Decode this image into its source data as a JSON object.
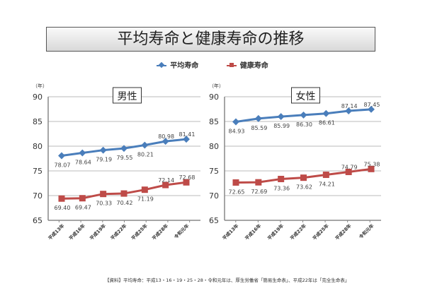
{
  "title": "平均寿命と健康寿命の推移",
  "legend": [
    {
      "name": "平均寿命",
      "color": "#4a7ebb"
    },
    {
      "name": "健康寿命",
      "color": "#be4b48"
    }
  ],
  "source": "【資料】平均寿命：平成13・16・19・25・28・令和元年は、厚生労働省「簡易生命表」、平成22年は「完全生命表」",
  "chart_data": [
    {
      "type": "line",
      "title": "男性",
      "ylabel": "（年）",
      "ylim": [
        65,
        90
      ],
      "yticks": [
        65,
        70,
        75,
        80,
        85,
        90
      ],
      "grid": true,
      "categories": [
        "平成13年",
        "平成16年",
        "平成19年",
        "平成22年",
        "平成25年",
        "平成28年",
        "令和元年"
      ],
      "series": [
        {
          "name": "平均寿命",
          "color": "#4a7ebb",
          "marker": "diamond",
          "values": [
            78.07,
            78.64,
            79.19,
            79.55,
            80.21,
            80.98,
            81.41
          ]
        },
        {
          "name": "健康寿命",
          "color": "#be4b48",
          "marker": "square",
          "values": [
            69.4,
            69.47,
            70.33,
            70.42,
            71.19,
            72.14,
            72.68
          ]
        }
      ]
    },
    {
      "type": "line",
      "title": "女性",
      "ylabel": "（年）",
      "ylim": [
        65,
        90
      ],
      "yticks": [
        65,
        70,
        75,
        80,
        85,
        90
      ],
      "grid": true,
      "categories": [
        "平成13年",
        "平成16年",
        "平成19年",
        "平成22年",
        "平成25年",
        "平成28年",
        "令和元年"
      ],
      "series": [
        {
          "name": "平均寿命",
          "color": "#4a7ebb",
          "marker": "diamond",
          "values": [
            84.93,
            85.59,
            85.99,
            86.3,
            86.61,
            87.14,
            87.45
          ]
        },
        {
          "name": "健康寿命",
          "color": "#be4b48",
          "marker": "square",
          "values": [
            72.65,
            72.69,
            73.36,
            73.62,
            74.21,
            74.79,
            75.38
          ]
        }
      ]
    }
  ]
}
